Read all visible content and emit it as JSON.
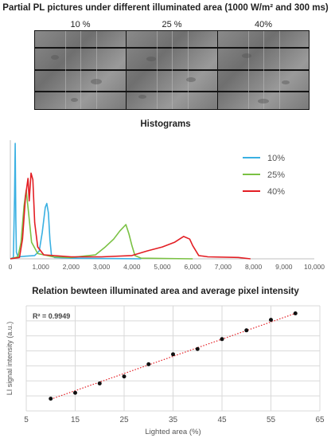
{
  "header": {
    "title_pl": "Partial PL pictures under different illuminated area (1000 W/m² and 300 ms)",
    "title_hist": "Histograms",
    "title_rel": "Relation bewteen illuminated area and average pixel intensity"
  },
  "pl_images": [
    {
      "label": "10 %"
    },
    {
      "label": "25 %"
    },
    {
      "label": "40%"
    }
  ],
  "chart_data": [
    {
      "type": "line",
      "title": "Histograms",
      "xlim": [
        0,
        10000
      ],
      "x_ticks": [
        "0",
        "1,000",
        "2,000",
        "3,000",
        "4,000",
        "5,000",
        "6,000",
        "7,000",
        "8,000",
        "9,000",
        "10,000"
      ],
      "grid": false,
      "legend": "top-right",
      "series": [
        {
          "name": "10%",
          "color": "#3ab0e2",
          "points": [
            [
              0,
              0
            ],
            [
              100,
              2
            ],
            [
              140,
              95
            ],
            [
              160,
              175
            ],
            [
              180,
              60
            ],
            [
              200,
              10
            ],
            [
              250,
              3
            ],
            [
              500,
              4
            ],
            [
              800,
              5
            ],
            [
              950,
              12
            ],
            [
              1050,
              40
            ],
            [
              1150,
              78
            ],
            [
              1200,
              84
            ],
            [
              1250,
              70
            ],
            [
              1300,
              30
            ],
            [
              1350,
              6
            ],
            [
              1450,
              2
            ],
            [
              2000,
              1
            ],
            [
              4300,
              0
            ]
          ]
        },
        {
          "name": "25%",
          "color": "#7ac143",
          "points": [
            [
              0,
              0
            ],
            [
              250,
              3
            ],
            [
              350,
              25
            ],
            [
              450,
              80
            ],
            [
              520,
              104
            ],
            [
              600,
              70
            ],
            [
              700,
              25
            ],
            [
              900,
              8
            ],
            [
              1400,
              3
            ],
            [
              2000,
              2
            ],
            [
              2800,
              6
            ],
            [
              3100,
              17
            ],
            [
              3400,
              30
            ],
            [
              3600,
              42
            ],
            [
              3800,
              52
            ],
            [
              3900,
              38
            ],
            [
              4000,
              20
            ],
            [
              4100,
              5
            ],
            [
              4300,
              1
            ],
            [
              6000,
              0
            ]
          ]
        },
        {
          "name": "40%",
          "color": "#e31e24",
          "points": [
            [
              0,
              0
            ],
            [
              300,
              2
            ],
            [
              400,
              30
            ],
            [
              500,
              95
            ],
            [
              580,
              122
            ],
            [
              620,
              88
            ],
            [
              680,
              130
            ],
            [
              740,
              120
            ],
            [
              800,
              55
            ],
            [
              900,
              18
            ],
            [
              1100,
              6
            ],
            [
              2000,
              3
            ],
            [
              3000,
              3
            ],
            [
              4000,
              5
            ],
            [
              4500,
              12
            ],
            [
              5000,
              18
            ],
            [
              5400,
              25
            ],
            [
              5700,
              34
            ],
            [
              5900,
              30
            ],
            [
              6000,
              20
            ],
            [
              6200,
              5
            ],
            [
              6500,
              3
            ],
            [
              7500,
              2
            ],
            [
              7900,
              0
            ]
          ]
        }
      ]
    },
    {
      "type": "scatter",
      "title": "Relation bewteen illuminated area and average pixel intensity",
      "xlabel": "Lighted area (%)",
      "ylabel": "LI signal intensity (a.u.)",
      "xlim": [
        5,
        65
      ],
      "x_ticks": [
        "5",
        "15",
        "25",
        "35",
        "45",
        "55",
        "65"
      ],
      "ylim": [
        0,
        9
      ],
      "grid": true,
      "annotation": "R² = 0.9949",
      "trendline": {
        "style": "dotted",
        "color": "#e31e24",
        "from": [
          10,
          1.0
        ],
        "to": [
          60,
          8.35
        ]
      },
      "series": [
        {
          "points": [
            [
              10,
              1.05
            ],
            [
              15,
              1.55
            ],
            [
              20,
              2.35
            ],
            [
              25,
              2.95
            ],
            [
              30,
              4.0
            ],
            [
              35,
              4.85
            ],
            [
              40,
              5.3
            ],
            [
              45,
              6.15
            ],
            [
              50,
              6.9
            ],
            [
              55,
              7.8
            ],
            [
              60,
              8.35
            ]
          ]
        }
      ]
    }
  ]
}
